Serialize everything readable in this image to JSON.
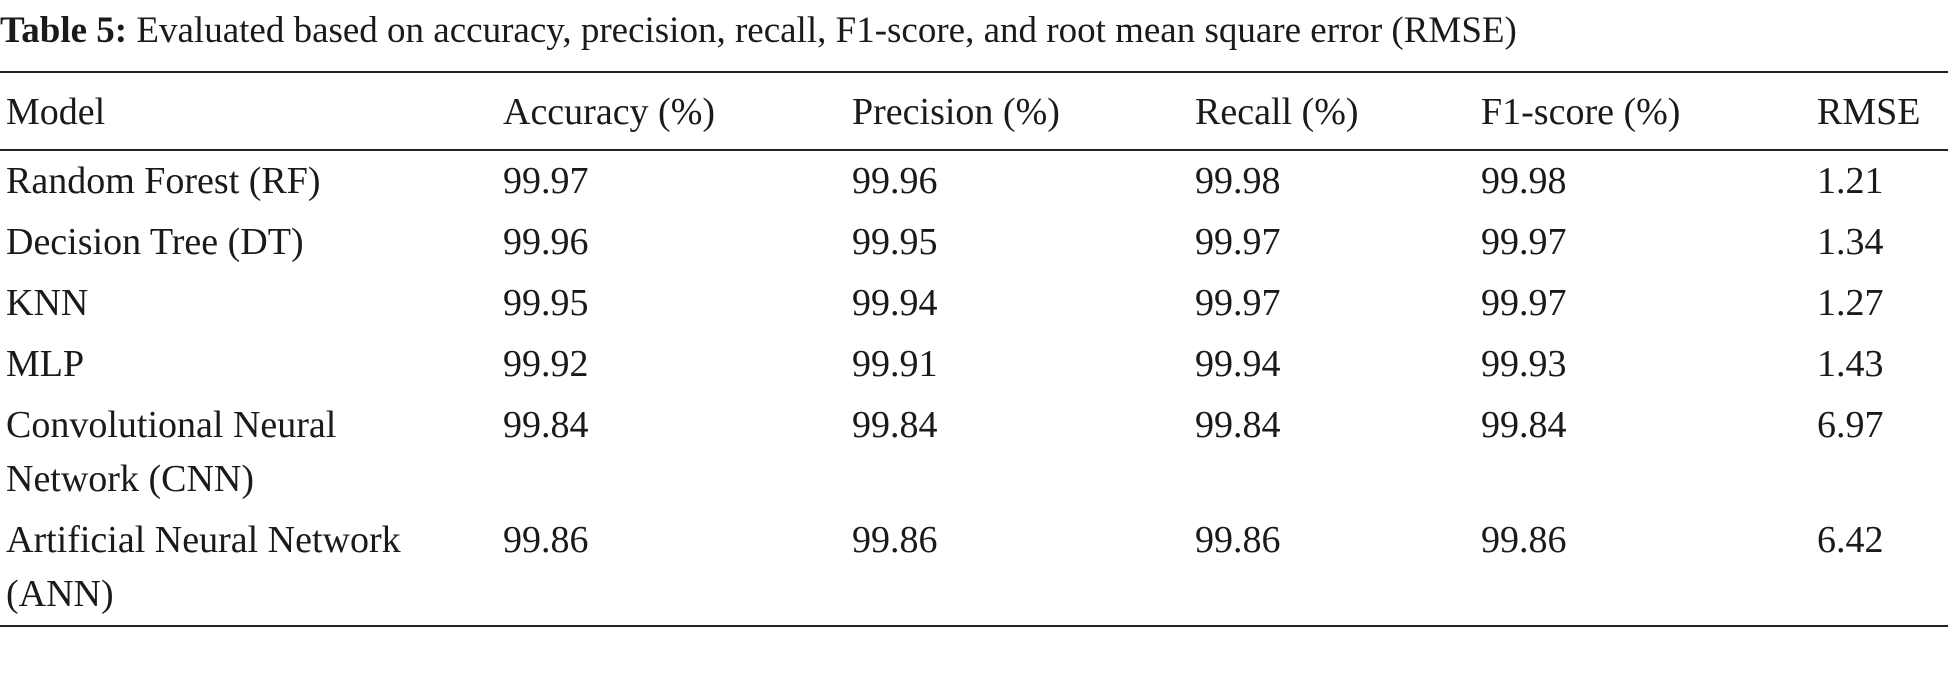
{
  "caption": {
    "label": "Table 5:",
    "text": "Evaluated based on accuracy, precision, recall, F1-score, and root mean square error (RMSE)"
  },
  "table": {
    "columns": [
      "Model",
      "Accuracy (%)",
      "Precision (%)",
      "Recall (%)",
      "F1-score (%)",
      "RMSE"
    ],
    "rows": [
      [
        "Random Forest (RF)",
        "99.97",
        "99.96",
        "99.98",
        "99.98",
        "1.21"
      ],
      [
        "Decision Tree (DT)",
        "99.96",
        "99.95",
        "99.97",
        "99.97",
        "1.34"
      ],
      [
        "KNN",
        "99.95",
        "99.94",
        "99.97",
        "99.97",
        "1.27"
      ],
      [
        "MLP",
        "99.92",
        "99.91",
        "99.94",
        "99.93",
        "1.43"
      ],
      [
        "Convolutional Neural Network (CNN)",
        "99.84",
        "99.84",
        "99.84",
        "99.84",
        "6.97"
      ],
      [
        "Artificial Neural Network (ANN)",
        "99.86",
        "99.86",
        "99.86",
        "99.86",
        "6.42"
      ]
    ]
  }
}
